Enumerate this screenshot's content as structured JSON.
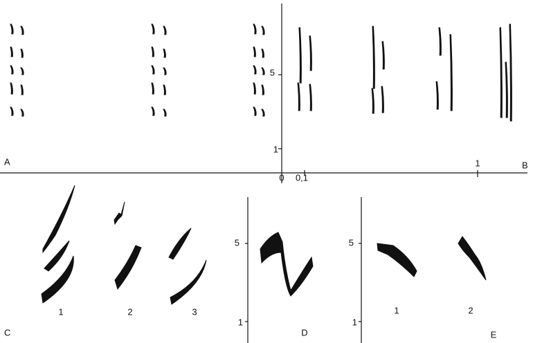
{
  "panels": {
    "A": "A",
    "B": "B",
    "C": "C",
    "D": "D",
    "E": "E"
  },
  "top_axis": {
    "y_ticks": [
      "5",
      "1"
    ],
    "x_ticks": [
      "0",
      "0,1",
      "1"
    ]
  },
  "d_axis": {
    "y_ticks": [
      "5",
      "1"
    ]
  },
  "e_axis": {
    "y_ticks": [
      "5",
      "1"
    ]
  },
  "sound_labels": {
    "C": [
      "1",
      "2",
      "3"
    ],
    "E": [
      "1",
      "2"
    ]
  }
}
